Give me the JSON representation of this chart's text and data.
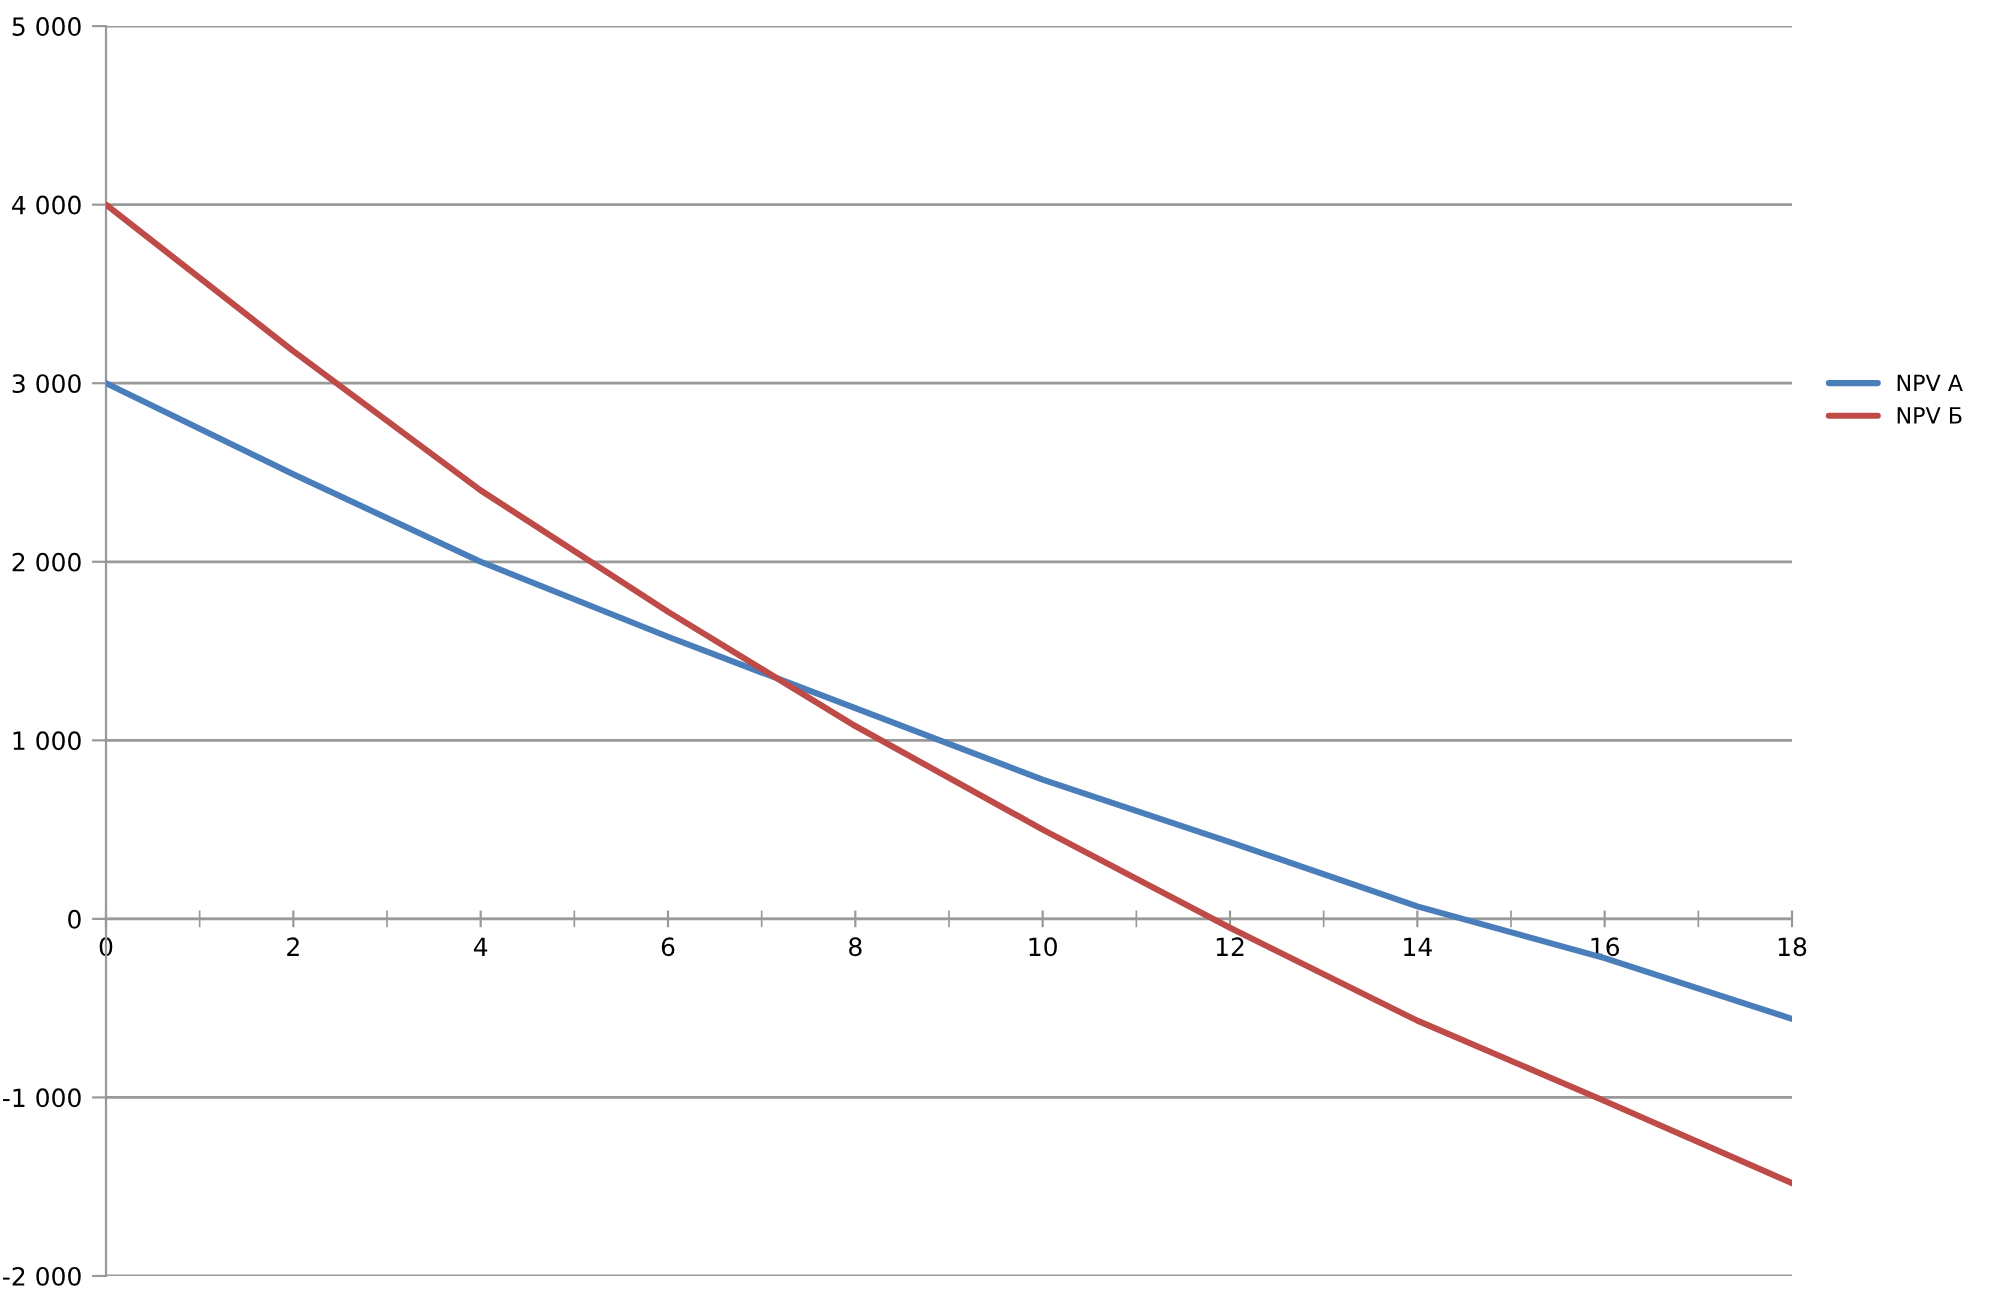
{
  "chart_data": {
    "type": "line",
    "x": [
      0,
      2,
      4,
      6,
      8,
      10,
      12,
      14,
      16,
      18
    ],
    "series": [
      {
        "name": "NPV A",
        "color": "#4a7ebb",
        "values": [
          3000,
          2490,
          2000,
          1580,
          1180,
          780,
          430,
          70,
          -220,
          -560
        ]
      },
      {
        "name": "NPV Б",
        "color": "#be4b48",
        "values": [
          4000,
          3180,
          2400,
          1720,
          1080,
          500,
          -50,
          -570,
          -1020,
          -1480
        ]
      }
    ],
    "xlim": [
      0,
      18
    ],
    "xticks": [
      0,
      2,
      4,
      6,
      8,
      10,
      12,
      14,
      16,
      18
    ],
    "ylim": [
      -2000,
      5000
    ],
    "yticks": [
      {
        "value": -2000,
        "label": "-2 000"
      },
      {
        "value": -1000,
        "label": "-1 000"
      },
      0,
      {
        "value": 1000,
        "label": "1 000"
      },
      {
        "value": 2000,
        "label": "2 000"
      },
      {
        "value": 3000,
        "label": "3 000"
      },
      {
        "value": 4000,
        "label": "4 000"
      },
      {
        "value": 5000,
        "label": "5 000"
      }
    ],
    "grid": "y",
    "legend": "right",
    "marker": "none",
    "line_style": "solid"
  }
}
